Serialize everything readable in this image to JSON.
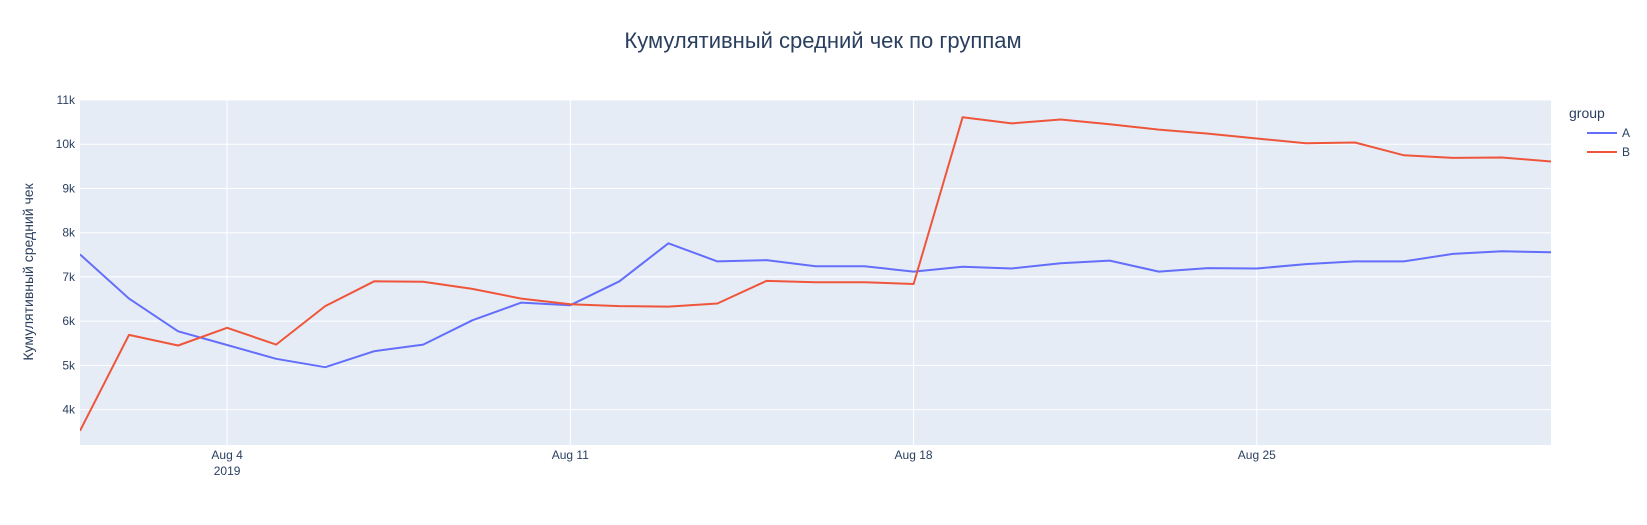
{
  "chart_data": {
    "type": "line",
    "title": "Кумулятивный средний чек по группам",
    "xlabel": "",
    "ylabel": "Кумулятивный средний чек",
    "x": [
      "2019-08-01",
      "2019-08-02",
      "2019-08-03",
      "2019-08-04",
      "2019-08-05",
      "2019-08-06",
      "2019-08-07",
      "2019-08-08",
      "2019-08-09",
      "2019-08-10",
      "2019-08-11",
      "2019-08-12",
      "2019-08-13",
      "2019-08-14",
      "2019-08-15",
      "2019-08-16",
      "2019-08-17",
      "2019-08-18",
      "2019-08-19",
      "2019-08-20",
      "2019-08-21",
      "2019-08-22",
      "2019-08-23",
      "2019-08-24",
      "2019-08-25",
      "2019-08-26",
      "2019-08-27",
      "2019-08-28",
      "2019-08-29",
      "2019-08-30",
      "2019-08-31"
    ],
    "xlim": [
      "2019-08-01",
      "2019-08-31"
    ],
    "ylim": [
      3200,
      11000
    ],
    "x_ticks": [
      {
        "date": "2019-08-04",
        "label": "Aug 4",
        "sublabel": "2019"
      },
      {
        "date": "2019-08-11",
        "label": "Aug 11",
        "sublabel": ""
      },
      {
        "date": "2019-08-18",
        "label": "Aug 18",
        "sublabel": ""
      },
      {
        "date": "2019-08-25",
        "label": "Aug 25",
        "sublabel": ""
      }
    ],
    "y_ticks": [
      {
        "value": 4000,
        "label": "4k"
      },
      {
        "value": 5000,
        "label": "5k"
      },
      {
        "value": 6000,
        "label": "6k"
      },
      {
        "value": 7000,
        "label": "7k"
      },
      {
        "value": 8000,
        "label": "8k"
      },
      {
        "value": 9000,
        "label": "9k"
      },
      {
        "value": 10000,
        "label": "10k"
      },
      {
        "value": 11000,
        "label": "11k"
      }
    ],
    "grid": true,
    "legend": {
      "title": "group",
      "placement": "right"
    },
    "series": [
      {
        "name": "A",
        "color": "#636efa",
        "values": [
          7510,
          6510,
          5770,
          5460,
          5150,
          4960,
          5320,
          5470,
          6020,
          6420,
          6360,
          6900,
          7760,
          7350,
          7380,
          7240,
          7240,
          7120,
          7230,
          7190,
          7310,
          7370,
          7120,
          7200,
          7190,
          7290,
          7350,
          7350,
          7520,
          7580,
          7560
        ]
      },
      {
        "name": "B",
        "color": "#ef553b",
        "values": [
          3520,
          5690,
          5450,
          5850,
          5470,
          6340,
          6900,
          6890,
          6730,
          6510,
          6380,
          6340,
          6330,
          6400,
          6910,
          6880,
          6880,
          6840,
          10610,
          10470,
          10560,
          10450,
          10330,
          10240,
          10130,
          10020,
          10040,
          9750,
          9690,
          9700,
          9610
        ]
      }
    ]
  }
}
